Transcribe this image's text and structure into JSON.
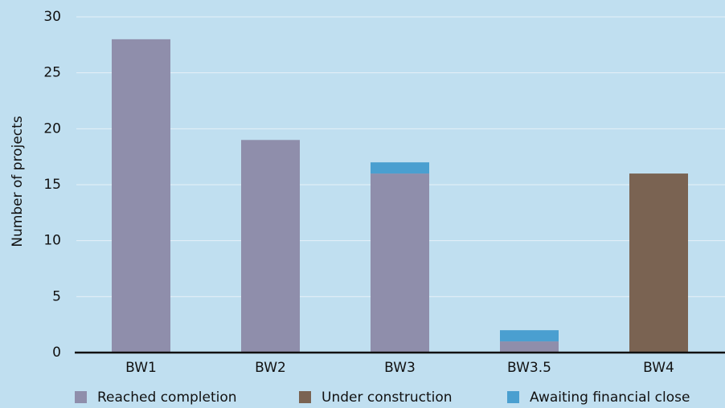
{
  "chart_data": {
    "type": "stacked_bar",
    "y_label": "Number of projects",
    "categories": [
      "BW1",
      "BW2",
      "BW3",
      "BW3.5",
      "BW4"
    ],
    "series": [
      {
        "name": "Reached completion",
        "color": "#8f8eab",
        "values": [
          28,
          19,
          16,
          1,
          0
        ]
      },
      {
        "name": "Under construction",
        "color": "#7a6352",
        "values": [
          0,
          0,
          0,
          0,
          16
        ]
      },
      {
        "name": "Awaiting financial close",
        "color": "#4a9fd0",
        "values": [
          0,
          0,
          1,
          1,
          0
        ]
      }
    ],
    "ylim": [
      0,
      30
    ],
    "yticks": [
      0,
      5,
      10,
      15,
      20,
      25,
      30
    ],
    "grid": true,
    "legend": "bottom"
  }
}
